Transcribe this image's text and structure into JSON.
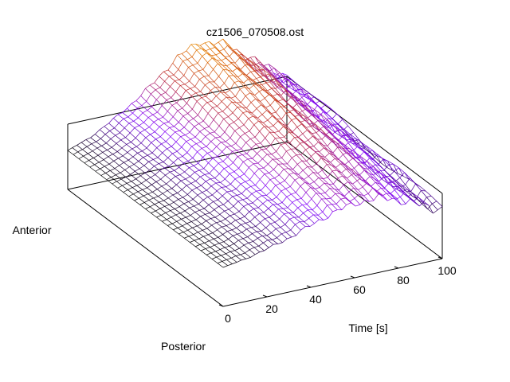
{
  "chart_data": {
    "type": "surface",
    "title": "cz1506_070508.ost",
    "xlabel": "Time [s]",
    "x_ticks": [
      0,
      20,
      40,
      60,
      80,
      100
    ],
    "xlim": [
      0,
      100
    ],
    "y_labels": {
      "front": "Posterior",
      "back": "Anterior"
    },
    "z_ticks_shown": false,
    "colormap": [
      "#000000",
      "#8000ff",
      "#c03030",
      "#e07000",
      "#ffff00"
    ],
    "mesh_style": "wireframe",
    "surface_profile": {
      "description_of_shape": "time-frequency style wireframe rising from flat at t=0 to a ridge peaking near t=55-65 s on the anterior side",
      "x": [
        0,
        10,
        20,
        30,
        40,
        50,
        60,
        70,
        80,
        90,
        100
      ],
      "z_posterior": [
        0.0,
        0.05,
        0.12,
        0.2,
        0.3,
        0.4,
        0.46,
        0.48,
        0.42,
        0.3,
        0.22
      ],
      "z_anterior": [
        0.0,
        0.1,
        0.25,
        0.42,
        0.62,
        0.85,
        0.98,
        0.92,
        0.75,
        0.55,
        0.4
      ]
    }
  }
}
